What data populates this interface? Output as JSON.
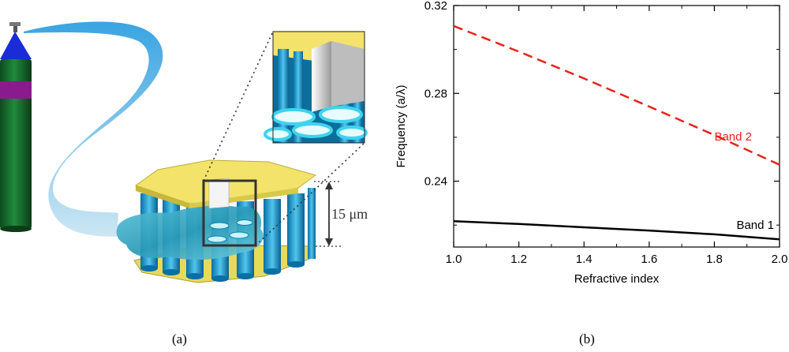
{
  "panel_a": {
    "dimension_label": "15 μm",
    "caption": "(a)"
  },
  "panel_b": {
    "caption": "(b)"
  },
  "chart_data": {
    "type": "line",
    "xlabel": "Refractive index",
    "ylabel": "Frequency (a/λ)",
    "xlim": [
      1.0,
      2.0
    ],
    "ylim": [
      0.21,
      0.32
    ],
    "xticks": [
      "1.0",
      "1.2",
      "1.4",
      "1.6",
      "1.8",
      "2.0"
    ],
    "yticks": [
      "0.24",
      "0.28",
      "0.32"
    ],
    "grid": false,
    "series": [
      {
        "name": "Band 1",
        "color": "#000000",
        "dash": "solid",
        "x": [
          1.0,
          1.2,
          1.4,
          1.6,
          1.8,
          2.0
        ],
        "y": [
          0.2218,
          0.2205,
          0.219,
          0.2175,
          0.2158,
          0.2135
        ]
      },
      {
        "name": "Band 2",
        "color": "#e8221a",
        "dash": "dashed",
        "x": [
          1.0,
          1.2,
          1.4,
          1.6,
          1.8,
          2.0
        ],
        "y": [
          0.3107,
          0.299,
          0.2868,
          0.274,
          0.261,
          0.2475
        ]
      }
    ]
  }
}
